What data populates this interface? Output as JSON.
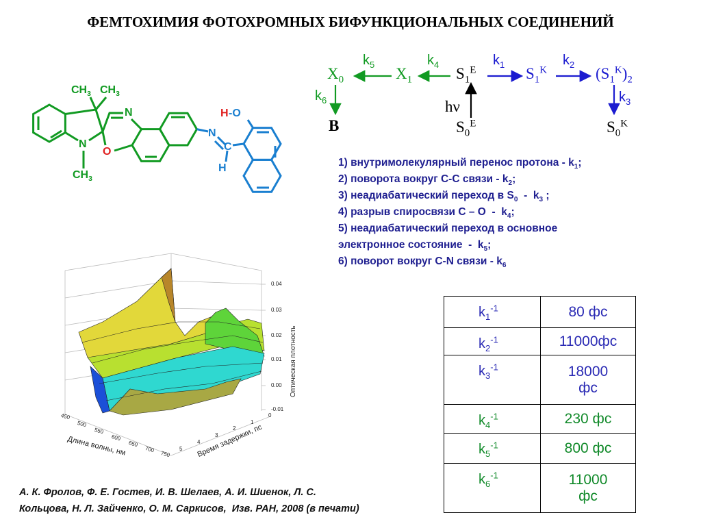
{
  "header": {
    "title": "ФЕМТОХИМИЯ ФОТОХРОМНЫХ БИФУНКЦИОНАЛЬНЫХ СОЕДИНЕНИЙ"
  },
  "molecule": {
    "labels": [
      [
        {
          "text": "CH",
          "sub": "3"
        }
      ],
      [
        {
          "text": "CH",
          "sub": "3"
        }
      ],
      [
        {
          "text": "N"
        }
      ],
      [
        {
          "text": "N"
        }
      ],
      [
        {
          "text": "O"
        }
      ],
      [
        {
          "text": "CH",
          "sub": "3"
        }
      ],
      [
        {
          "text": "H"
        }
      ],
      [
        {
          "text": "-O"
        }
      ],
      [
        {
          "text": "N"
        }
      ],
      [
        {
          "text": "C"
        }
      ],
      [
        {
          "text": "H"
        }
      ]
    ]
  },
  "scheme": {
    "items": [
      [
        {
          "text": "X",
          "sub": "0"
        }
      ],
      [
        {
          "text": "k",
          "sub": "5"
        }
      ],
      [
        {
          "text": "X",
          "sub": "1"
        }
      ],
      [
        {
          "text": "k",
          "sub": "4"
        }
      ],
      [
        {
          "text": "S",
          "sub": "1",
          "sup": "E"
        }
      ],
      [
        {
          "text": "k",
          "sub": "1"
        }
      ],
      [
        {
          "text": "S",
          "sub": "1",
          "sup": "K"
        }
      ],
      [
        {
          "text": "k",
          "sub": "2"
        }
      ],
      [
        {
          "text": "(S",
          "sub": "1",
          "sup": "K"
        },
        {
          "text": ")",
          "sub": "2"
        }
      ],
      [
        {
          "text": "k",
          "sub": "6"
        }
      ],
      [
        {
          "text": "B"
        }
      ],
      [
        {
          "text": "hν"
        }
      ],
      [
        {
          "text": "k",
          "sub": "3"
        }
      ],
      [
        {
          "text": "S",
          "sub": "0",
          "sup": "E"
        }
      ],
      [
        {
          "text": "S",
          "sub": "0",
          "sup": "K"
        }
      ]
    ]
  },
  "processes": {
    "lines": [
      [
        {
          "text": "1) внутримолекулярный перенос протона - k",
          "sub": "1"
        },
        {
          "text": ";"
        }
      ],
      [
        {
          "text": "2) поворота вокруг С-С связи - k",
          "sub": "2"
        },
        {
          "text": ";"
        }
      ],
      [
        {
          "text": "3) неадиабатический переход в S",
          "sub": "0"
        },
        {
          "text": "  -  k",
          "sub": "3"
        },
        {
          "text": " ;"
        }
      ],
      [
        {
          "text": "4) разрыв спиросвязи С – О  -  k",
          "sub": "4"
        },
        {
          "text": ";"
        }
      ],
      [
        {
          "text": "5) неадиабатический переход в основное"
        }
      ],
      [
        {
          "text": "электронное состояние  -  k",
          "sub": "5"
        },
        {
          "text": ";"
        }
      ],
      [
        {
          "text": "6) поворот вокруг С-N связи - k",
          "sub": "6"
        }
      ]
    ]
  },
  "plot": {
    "z_label": "Оптическая плотность",
    "z_ticks": [
      "0.04",
      "0.03",
      "0.02",
      "0.01",
      "0.00",
      "-0.01"
    ],
    "x_label": "Длина волны, нм",
    "x_ticks": [
      "450",
      "500",
      "550",
      "600",
      "650",
      "700",
      "750"
    ],
    "y_label": "Время задержки, пс",
    "y_ticks": [
      "5",
      "4",
      "3",
      "2",
      "1",
      "0"
    ]
  },
  "table": {
    "rows": [
      {
        "rate": [
          {
            "text": "k",
            "sub": "1",
            "sup": "-1"
          }
        ],
        "time": [
          "80 фс"
        ],
        "color": "#2a2ab4"
      },
      {
        "rate": [
          {
            "text": "k",
            "sub": "2",
            "sup": "-1"
          }
        ],
        "time": [
          "11000фс"
        ],
        "color": "#2a2ab4"
      },
      {
        "rate": [
          {
            "text": "k",
            "sub": "3",
            "sup": "-1"
          }
        ],
        "time": [
          "18000",
          "фс"
        ],
        "color": "#2a2ab4"
      },
      {
        "rate": [
          {
            "text": "k",
            "sub": "4",
            "sup": "-1"
          }
        ],
        "time": [
          "230 фс"
        ],
        "color": "#118a2a"
      },
      {
        "rate": [
          {
            "text": "k",
            "sub": "5",
            "sup": "-1"
          }
        ],
        "time": [
          "800 фс"
        ],
        "color": "#118a2a"
      },
      {
        "rate": [
          {
            "text": "k",
            "sub": "6",
            "sup": "-1"
          }
        ],
        "time": [
          "11000",
          "фс"
        ],
        "color": "#118a2a"
      }
    ]
  },
  "citation": {
    "lines": [
      "А. К. Фролов, Ф. Е. Гостев, И. В. Шелаев, А. И. Шиенок, Л. С.",
      "Кольцова, Н. Л. Зайченко, О. М. Саркисов,  Изв. РАН, 2008 (в печати)"
    ]
  }
}
